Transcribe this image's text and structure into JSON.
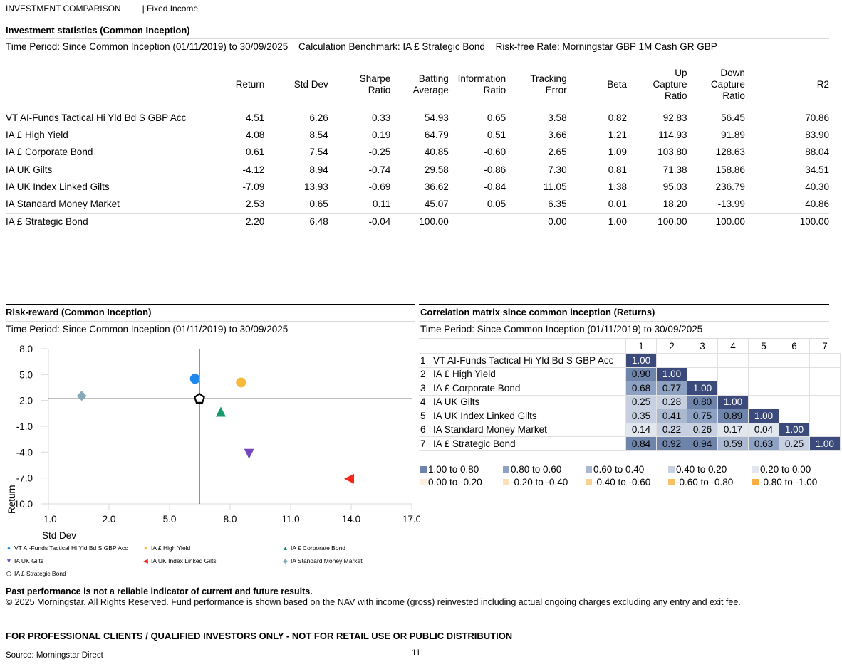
{
  "header": {
    "title": "INVESTMENT COMPARISON",
    "subtitle": "| Fixed Income"
  },
  "stats": {
    "title": "Investment statistics (Common Inception)",
    "period": "Time Period: Since Common Inception (01/11/2019) to 30/09/2025",
    "benchmark": "Calculation Benchmark: IA £ Strategic Bond",
    "risk_free": "Risk-free Rate: Morningstar GBP 1M Cash GR GBP",
    "columns": [
      "Return",
      "Std Dev",
      "Sharpe\nRatio",
      "Batting\nAverage",
      "Information\nRatio",
      "Tracking\nError",
      "Beta",
      "Up\nCapture\nRatio",
      "Down\nCapture\nRatio",
      "R2"
    ],
    "rows": [
      {
        "name": "VT AI-Funds Tactical Hi Yld Bd S GBP Acc",
        "values": [
          "4.51",
          "6.26",
          "0.33",
          "54.93",
          "0.65",
          "3.58",
          "0.82",
          "92.83",
          "56.45",
          "70.86"
        ]
      },
      {
        "name": "IA £ High Yield",
        "values": [
          "4.08",
          "8.54",
          "0.19",
          "64.79",
          "0.51",
          "3.66",
          "1.21",
          "114.93",
          "91.89",
          "83.90"
        ]
      },
      {
        "name": "IA £ Corporate Bond",
        "values": [
          "0.61",
          "7.54",
          "-0.25",
          "40.85",
          "-0.60",
          "2.65",
          "1.09",
          "103.80",
          "128.63",
          "88.04"
        ]
      },
      {
        "name": "IA UK Gilts",
        "values": [
          "-4.12",
          "8.94",
          "-0.74",
          "29.58",
          "-0.86",
          "7.30",
          "0.81",
          "71.38",
          "158.86",
          "34.51"
        ]
      },
      {
        "name": "IA UK Index Linked Gilts",
        "values": [
          "-7.09",
          "13.93",
          "-0.69",
          "36.62",
          "-0.84",
          "11.05",
          "1.38",
          "95.03",
          "236.79",
          "40.30"
        ]
      },
      {
        "name": "IA Standard Money Market",
        "values": [
          "2.53",
          "0.65",
          "0.11",
          "45.07",
          "0.05",
          "6.35",
          "0.01",
          "18.20",
          "-13.99",
          "40.86"
        ]
      }
    ],
    "benchmark_row": {
      "name": "IA £ Strategic Bond",
      "values": [
        "2.20",
        "6.48",
        "-0.04",
        "100.00",
        "",
        "0.00",
        "1.00",
        "100.00",
        "100.00",
        "100.00"
      ]
    }
  },
  "risk_reward": {
    "title": "Risk-reward (Common Inception)",
    "period": "Time Period: Since Common Inception (01/11/2019) to 30/09/2025"
  },
  "chart_data": {
    "type": "scatter",
    "title": "Risk-reward (Common Inception)",
    "xlabel": "Std Dev",
    "ylabel": "Return",
    "xlim": [
      -1.0,
      17.0
    ],
    "ylim": [
      -10.0,
      8.0
    ],
    "xticks": [
      "-1.0",
      "2.0",
      "5.0",
      "8.0",
      "11.0",
      "14.0",
      "17.0"
    ],
    "yticks": [
      "8.0",
      "5.0",
      "2.0",
      "-1.0",
      "-4.0",
      "-7.0",
      "-10.0"
    ],
    "crosshair": {
      "x": 6.48,
      "y": 2.2
    },
    "legend_position": "bottom",
    "series": [
      {
        "name": "VT AI-Funds Tactical Hi Yld Bd S GBP Acc",
        "x": 6.26,
        "y": 4.51,
        "marker": "circle",
        "color": "#1e88f0",
        "legend_glyph": "●"
      },
      {
        "name": "IA £ High Yield",
        "x": 8.54,
        "y": 4.08,
        "marker": "circle",
        "color": "#fbb93a",
        "legend_glyph": "●"
      },
      {
        "name": "IA £ Corporate Bond",
        "x": 7.54,
        "y": 0.61,
        "marker": "triangle-up",
        "color": "#149a6e",
        "legend_glyph": "▲"
      },
      {
        "name": "IA UK Gilts",
        "x": 8.94,
        "y": -4.12,
        "marker": "triangle-down",
        "color": "#7246bc",
        "legend_glyph": "▼"
      },
      {
        "name": "IA UK Index Linked Gilts",
        "x": 13.93,
        "y": -7.09,
        "marker": "triangle-left",
        "color": "#f5261c",
        "legend_glyph": "◀"
      },
      {
        "name": "IA Standard Money Market",
        "x": 0.65,
        "y": 2.53,
        "marker": "diamond",
        "color": "#86a8b8",
        "legend_glyph": "◆"
      },
      {
        "name": "IA £ Strategic Bond",
        "x": 6.48,
        "y": 2.2,
        "marker": "pentagon-outline",
        "color": "#000000",
        "legend_glyph": "⬠"
      }
    ]
  },
  "correlation": {
    "title": "Correlation matrix since common inception (Returns)",
    "period": "Time Period: Since Common Inception (01/11/2019) to 30/09/2025",
    "col_headers": [
      "1",
      "2",
      "3",
      "4",
      "5",
      "6",
      "7"
    ],
    "rows": [
      {
        "num": "1",
        "name": "VT AI-Funds Tactical Hi Yld Bd S GBP Acc",
        "values": [
          "1.00"
        ]
      },
      {
        "num": "2",
        "name": "IA £ High Yield",
        "values": [
          "0.90",
          "1.00"
        ]
      },
      {
        "num": "3",
        "name": "IA £ Corporate Bond",
        "values": [
          "0.68",
          "0.77",
          "1.00"
        ]
      },
      {
        "num": "4",
        "name": "IA UK Gilts",
        "values": [
          "0.25",
          "0.28",
          "0.80",
          "1.00"
        ]
      },
      {
        "num": "5",
        "name": "IA UK Index Linked Gilts",
        "values": [
          "0.35",
          "0.41",
          "0.75",
          "0.89",
          "1.00"
        ]
      },
      {
        "num": "6",
        "name": "IA Standard Money Market",
        "values": [
          "0.14",
          "0.22",
          "0.26",
          "0.17",
          "0.04",
          "1.00"
        ]
      },
      {
        "num": "7",
        "name": "IA £ Strategic Bond",
        "values": [
          "0.84",
          "0.92",
          "0.94",
          "0.59",
          "0.63",
          "0.25",
          "1.00"
        ]
      }
    ],
    "diagonal_color": "#3b4a7a",
    "legend": [
      {
        "label": "1.00 to 0.80",
        "color": "#6e84aa"
      },
      {
        "label": "0.80 to 0.60",
        "color": "#8da1c2"
      },
      {
        "label": "0.60 to 0.40",
        "color": "#aab8d0"
      },
      {
        "label": "0.40 to 0.20",
        "color": "#c6d0e0"
      },
      {
        "label": "0.20 to 0.00",
        "color": "#e2e7ef"
      },
      {
        "label": "0.00 to -0.20",
        "color": "#fdf0de"
      },
      {
        "label": "-0.20 to -0.40",
        "color": "#fde0b8"
      },
      {
        "label": "-0.40 to -0.60",
        "color": "#fcd08f"
      },
      {
        "label": "-0.60 to -0.80",
        "color": "#fbc066"
      },
      {
        "label": "-0.80 to -1.00",
        "color": "#f9ae3f"
      }
    ]
  },
  "footer": {
    "disclaimer_bold": "Past performance is not a reliable indicator of current and future results.",
    "disclaimer": "© 2025 Morningstar. All Rights Reserved. Fund performance is shown based on the NAV with income (gross) reinvested including actual ongoing charges excluding any entry and exit fee.",
    "professional": "FOR PROFESSIONAL CLIENTS / QUALIFIED INVESTORS ONLY - NOT FOR RETAIL USE OR PUBLIC DISTRIBUTION",
    "source": "Source: Morningstar Direct",
    "page": "11"
  }
}
